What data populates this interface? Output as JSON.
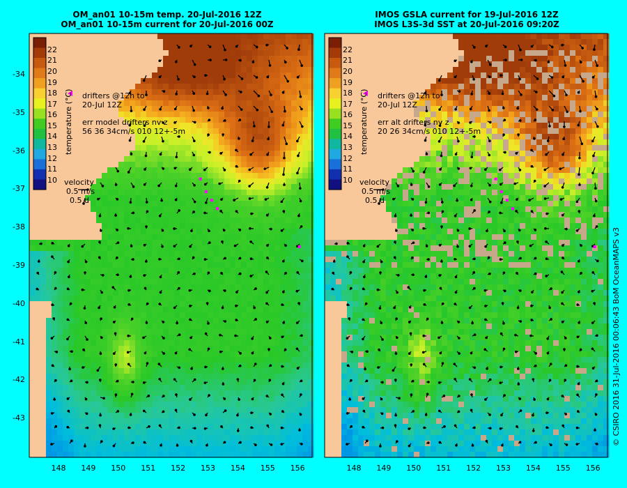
{
  "left_panel": {
    "title_line1": "OM_an01 10-15m temp. 20-Jul-2016 12Z",
    "title_line2": "OM_an01 10-15m current for 20-Jul-2016 00Z",
    "drifters_label_1": "drifters @12h to",
    "drifters_label_2": "20-Jul 12Z",
    "err_label_1": "err model drifters nv z",
    "err_label_2": "56 36 34cm/s 010 12+-5m",
    "velocity_label": "velocity",
    "velocity_scale": "0.5 m/s",
    "velocity_time": "0.5 d"
  },
  "right_panel": {
    "title_line1": "IMOS GSLA current for 19-Jul-2016 12Z",
    "title_line2": "IMOS L3S-3d SST at 20-Jul-2016 09:20Z",
    "drifters_label_1": "drifters @12h to",
    "drifters_label_2": "20-Jul 12Z",
    "err_label_1": "err alt drifters nv z",
    "err_label_2": "20 26 34cm/s 010 12+-5m",
    "velocity_label": "velocity",
    "velocity_scale": "0.5 m/s",
    "velocity_time": "0.5 d"
  },
  "colorbar": {
    "label": "temperature (°C)",
    "ticks": [
      "22",
      "21",
      "20",
      "19",
      "18",
      "17",
      "16",
      "15",
      "14",
      "13",
      "12",
      "11",
      "10"
    ],
    "colors": [
      "#7a1e06",
      "#a43a08",
      "#c85a10",
      "#e07a18",
      "#f0a020",
      "#f8d030",
      "#e8f020",
      "#98e020",
      "#40cc20",
      "#20c040",
      "#10b8a0",
      "#20a8e0",
      "#1870d8",
      "#1030b0",
      "#101080"
    ]
  },
  "axes": {
    "lat_ticks": [
      "-34",
      "-35",
      "-36",
      "-37",
      "-38",
      "-39",
      "-40",
      "-41",
      "-42",
      "-43"
    ],
    "lon_ticks": [
      "148",
      "149",
      "150",
      "151",
      "152",
      "153",
      "154",
      "155",
      "156"
    ]
  },
  "credit": "© CSIRO 2016   31-Jul-2016 00:06:43 BoM OceanMAPS v3",
  "colors": {
    "background": "#00ffff",
    "land": "#f8c89a",
    "cloud": "#c8a88a",
    "drifter": "#ff00ff"
  }
}
